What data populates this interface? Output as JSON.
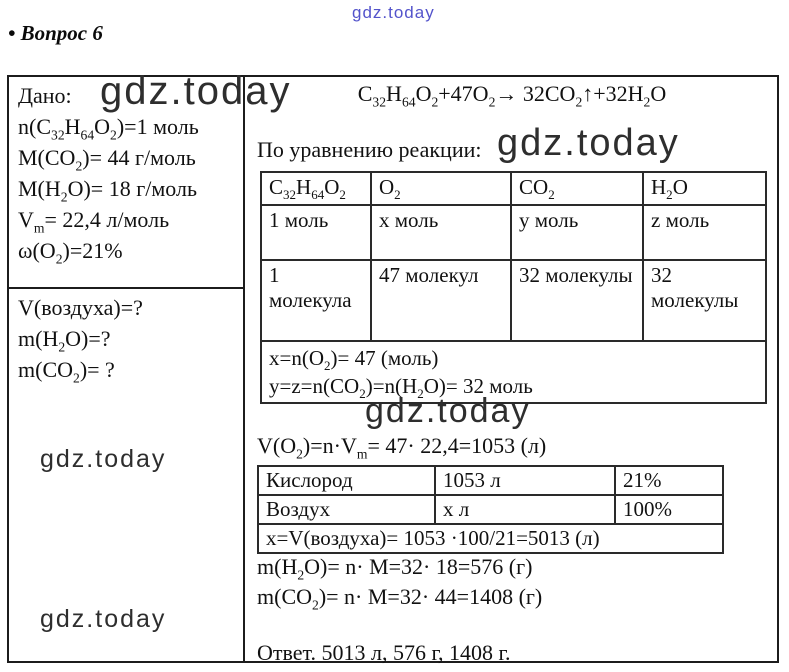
{
  "watermarks": {
    "text": "gdz.today",
    "blue_color": "#5353cb",
    "dark_color": "#2e2e2e"
  },
  "header": {
    "title": "• Вопрос 6"
  },
  "given": {
    "label": "Дано:",
    "lines": [
      "n(C~32~H~64~O~2~)=1 моль",
      "M(CO~2~)= 44 г/моль",
      "M(H~2~O)= 18 г/моль",
      "V~m~= 22,4 л/моль",
      "ω(O~2~)=21%"
    ],
    "find": [
      "V(воздуха)=?",
      "m(H~2~O)=?",
      "m(CO~2~)= ?"
    ]
  },
  "solution": {
    "equation": "C~32~H~64~O~2~+47O~2~→ 32CO~2~↑+32H~2~O",
    "by_equation_label": "По уравнению реакции:",
    "table1": {
      "headers": [
        "C~32~H~64~O~2~",
        "O~2~",
        "CO~2~",
        "H~2~O"
      ],
      "row_mol": [
        "1 моль",
        "x моль",
        "y моль",
        "z моль"
      ],
      "row_molecules": [
        "1 молекула",
        "47 молекул",
        "32 молекулы",
        "32 молекулы"
      ],
      "footer_lines": [
        "x=n(O~2~)= 47 (моль)",
        "y=z=n(CO~2~)=n(H~2~O)= 32 моль"
      ]
    },
    "volume_line": "V(O~2~)=n·V~m~= 47· 22,4=1053 (л)",
    "table2": {
      "rows": [
        [
          "Кислород",
          "1053 л",
          "21%"
        ],
        [
          "Воздух",
          "х л",
          "100%"
        ]
      ],
      "footer": "x=V(воздуха)= 1053 ·100/21=5013 (л)"
    },
    "mass_lines": [
      "m(H~2~O)= n· M=32· 18=576 (г)",
      "m(CO~2~)= n· M=32· 44=1408 (г)"
    ],
    "answer": "Ответ. 5013 л, 576 г, 1408 г."
  }
}
